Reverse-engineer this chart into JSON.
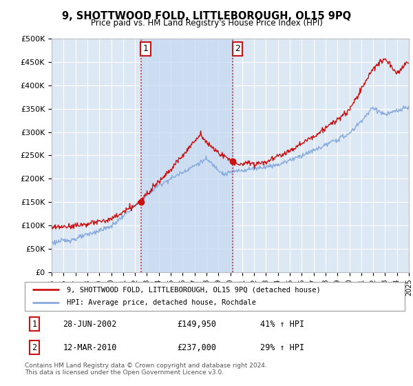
{
  "title": "9, SHOTTWOOD FOLD, LITTLEBOROUGH, OL15 9PQ",
  "subtitle": "Price paid vs. HM Land Registry's House Price Index (HPI)",
  "ylim": [
    0,
    500000
  ],
  "yticks": [
    0,
    50000,
    100000,
    150000,
    200000,
    250000,
    300000,
    350000,
    400000,
    450000,
    500000
  ],
  "ytick_labels": [
    "£0",
    "£50K",
    "£100K",
    "£150K",
    "£200K",
    "£250K",
    "£300K",
    "£350K",
    "£400K",
    "£450K",
    "£500K"
  ],
  "hpi_color": "#88aadd",
  "price_color": "#cc1111",
  "plot_bg_color": "#dde8f5",
  "grid_color": "#ffffff",
  "shade_color": "#c5d8f0",
  "marker1_year": 2002.49,
  "marker1_price": 149950,
  "marker2_year": 2010.19,
  "marker2_price": 237000,
  "legend_line1": "9, SHOTTWOOD FOLD, LITTLEBOROUGH, OL15 9PQ (detached house)",
  "legend_line2": "HPI: Average price, detached house, Rochdale",
  "marker1_date": "28-JUN-2002",
  "marker1_amount": "£149,950",
  "marker1_pct": "41% ↑ HPI",
  "marker2_date": "12-MAR-2010",
  "marker2_amount": "£237,000",
  "marker2_pct": "29% ↑ HPI",
  "footnote1": "Contains HM Land Registry data © Crown copyright and database right 2024.",
  "footnote2": "This data is licensed under the Open Government Licence v3.0.",
  "xmin": 1995,
  "xmax": 2025
}
